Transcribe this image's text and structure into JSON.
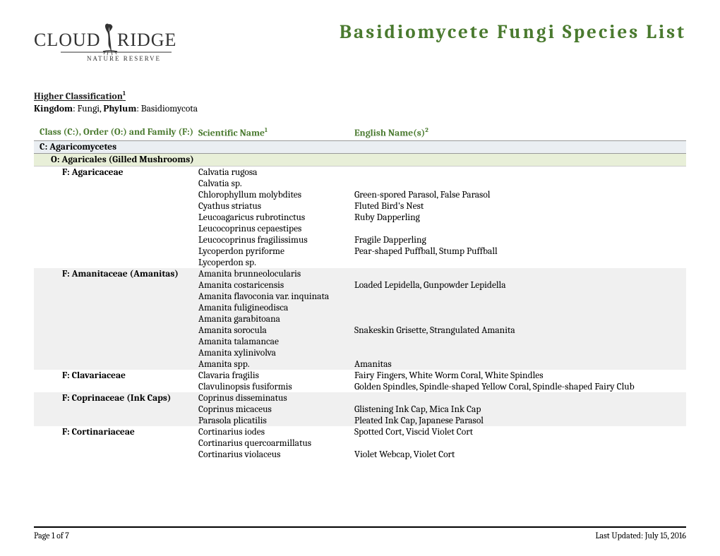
{
  "header": {
    "logo_main": "CLOUDBRIDGE",
    "logo_sub": "NATURE RESERVE",
    "title": "Basidiomycete Fungi Species List"
  },
  "classification": {
    "header": "Higher Classification",
    "header_sup": "1",
    "kingdom_label": "Kingdom",
    "kingdom_value": "Fungi",
    "phylum_label": "Phylum",
    "phylum_value": "Basidiomycota"
  },
  "columns": {
    "family": "Class (C:), Order (O:) and Family (F:)",
    "scientific": "Scientific Name",
    "scientific_sup": "1",
    "english": "English Name(s)",
    "english_sup": "2"
  },
  "class_row": "C: Agaricomycetes",
  "order_row": "O: Agaricales (Gilled Mushrooms)",
  "families": [
    {
      "name": "F: Agaricaceae",
      "alt": false,
      "species": [
        {
          "scientific": "Calvatia rugosa",
          "english": ""
        },
        {
          "scientific": "Calvatia sp.",
          "english": ""
        },
        {
          "scientific": "Chlorophyllum molybdites",
          "english": "Green-spored Parasol, False Parasol"
        },
        {
          "scientific": "Cyathus striatus",
          "english": "Fluted Bird's Nest"
        },
        {
          "scientific": "Leucoagaricus rubrotinctus",
          "english": "Ruby Dapperling"
        },
        {
          "scientific": "Leucocoprinus cepaestipes",
          "english": ""
        },
        {
          "scientific": "Leucocoprinus fragilissimus",
          "english": "Fragile Dapperling"
        },
        {
          "scientific": "Lycoperdon pyriforme",
          "english": "Pear-shaped Puffball, Stump Puffball"
        },
        {
          "scientific": "Lycoperdon sp.",
          "english": ""
        }
      ]
    },
    {
      "name": "F: Amanitaceae (Amanitas)",
      "alt": true,
      "species": [
        {
          "scientific": "Amanita brunneolocularis",
          "english": ""
        },
        {
          "scientific": "Amanita costaricensis",
          "english": "Loaded Lepidella, Gunpowder Lepidella"
        },
        {
          "scientific": "Amanita flavoconia var. inquinata",
          "english": ""
        },
        {
          "scientific": "Amanita fuligineodisca",
          "english": ""
        },
        {
          "scientific": "Amanita garabitoana",
          "english": ""
        },
        {
          "scientific": "Amanita sorocula",
          "english": "Snakeskin Grisette, Strangulated Amanita"
        },
        {
          "scientific": "Amanita talamancae",
          "english": ""
        },
        {
          "scientific": "Amanita xylinivolva",
          "english": ""
        },
        {
          "scientific": "Amanita spp.",
          "english": "Amanitas"
        }
      ]
    },
    {
      "name": "F: Clavariaceae",
      "alt": false,
      "species": [
        {
          "scientific": "Clavaria fragilis",
          "english": "Fairy Fingers, White Worm Coral, White Spindles"
        },
        {
          "scientific": "Clavulinopsis fusiformis",
          "english": "Golden Spindles, Spindle-shaped Yellow Coral, Spindle-shaped Fairy Club"
        }
      ]
    },
    {
      "name": "F: Coprinaceae (Ink Caps)",
      "alt": true,
      "species": [
        {
          "scientific": "Coprinus disseminatus",
          "english": ""
        },
        {
          "scientific": "Coprinus micaceus",
          "english": "Glistening Ink Cap, Mica Ink Cap"
        },
        {
          "scientific": "Parasola plicatilis",
          "english": "Pleated Ink Cap, Japanese Parasol"
        }
      ]
    },
    {
      "name": "F: Cortinariaceae",
      "alt": false,
      "species": [
        {
          "scientific": "Cortinarius iodes",
          "english": "Spotted Cort, Viscid Violet Cort"
        },
        {
          "scientific": "Cortinarius quercoarmillatus",
          "english": ""
        },
        {
          "scientific": "Cortinarius violaceus",
          "english": "Violet Webcap, Violet Cort"
        }
      ]
    }
  ],
  "footer": {
    "page": "Page 1 of 7",
    "updated": "Last Updated: July 15, 2016"
  },
  "colors": {
    "green": "#4a7a2f",
    "class_bg": "#eaeef2",
    "order_bg": "#e8efd8",
    "alt_bg": "#f0f0f0"
  }
}
